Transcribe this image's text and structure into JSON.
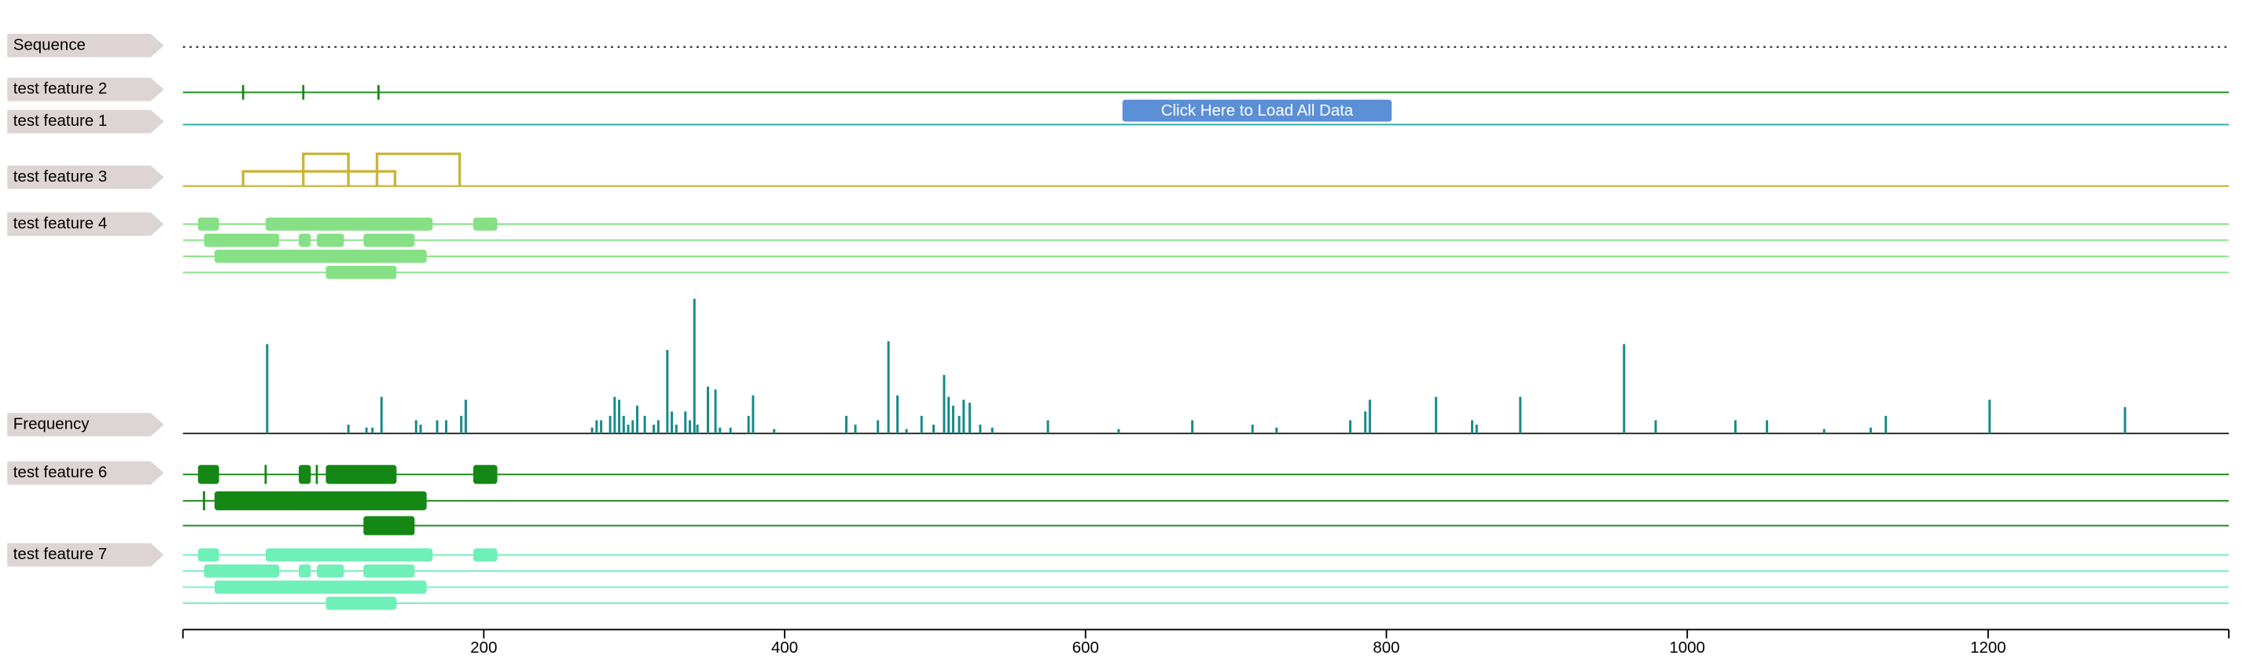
{
  "chart_data": {
    "type": "feature-viewer",
    "xlim": [
      0,
      1360
    ],
    "xticks": [
      200,
      400,
      600,
      800,
      1000,
      1200
    ],
    "button": {
      "label": "Click Here to Load All Data"
    },
    "tracks": [
      {
        "name": "Sequence",
        "kind": "sequence"
      },
      {
        "name": "test feature 2",
        "kind": "features",
        "color": "#168a16",
        "rows": [
          [
            40,
            80,
            130
          ]
        ]
      },
      {
        "name": "test feature 1",
        "kind": "features",
        "color": "#2aa6a6",
        "rows": [
          []
        ]
      },
      {
        "name": "test feature 3",
        "kind": "bridges",
        "color": "#c9b43a",
        "rows": [
          [
            [
              40,
              141
            ]
          ],
          [
            [
              80,
              110
            ],
            [
              129,
              184
            ]
          ]
        ]
      },
      {
        "name": "test feature 4",
        "kind": "features",
        "color": "#86e086",
        "rows": [
          [
            [
              10,
              24
            ],
            [
              55,
              166
            ],
            [
              193,
              209
            ]
          ],
          [
            [
              14,
              64
            ],
            [
              77,
              85
            ],
            [
              89,
              107
            ],
            [
              120,
              154
            ]
          ],
          [
            [
              21,
              162
            ]
          ],
          [
            [
              95,
              142
            ]
          ]
        ]
      },
      {
        "name": "Frequency",
        "kind": "frequency",
        "color": "#178a8a",
        "ylim": [
          0,
          100
        ],
        "x": [
          56,
          110,
          122,
          126,
          132,
          155,
          158,
          169,
          175,
          185,
          188,
          272,
          275,
          278,
          284,
          287,
          290,
          293,
          296,
          299,
          302,
          307,
          313,
          316,
          322,
          325,
          328,
          334,
          337,
          340,
          342,
          349,
          354,
          357,
          364,
          376,
          379,
          393,
          441,
          447,
          462,
          469,
          475,
          481,
          491,
          499,
          506,
          509,
          512,
          516,
          519,
          523,
          530,
          538,
          575,
          622,
          671,
          711,
          727,
          776,
          786,
          789,
          833,
          857,
          860,
          889,
          958,
          979,
          1032,
          1053,
          1091,
          1122,
          1132,
          1201,
          1291
        ],
        "values": [
          61,
          6,
          4,
          4,
          25,
          9,
          6,
          9,
          9,
          12,
          23,
          4,
          9,
          9,
          12,
          25,
          23,
          12,
          6,
          9,
          19,
          12,
          6,
          9,
          57,
          15,
          6,
          15,
          9,
          92,
          6,
          32,
          30,
          4,
          4,
          12,
          26,
          3,
          12,
          6,
          9,
          63,
          26,
          3,
          12,
          6,
          40,
          25,
          19,
          12,
          23,
          21,
          6,
          4,
          9,
          3,
          9,
          6,
          4,
          9,
          15,
          23,
          25,
          9,
          6,
          25,
          61,
          9,
          9,
          9,
          3,
          4,
          12,
          23,
          18
        ]
      },
      {
        "name": "test feature 6",
        "kind": "features",
        "color": "#148714",
        "rows": [
          [
            [
              10,
              24
            ],
            55,
            [
              77,
              85
            ],
            89,
            [
              95,
              142
            ],
            [
              193,
              209
            ]
          ],
          [
            14,
            [
              21,
              162
            ]
          ],
          [
            [
              120,
              154
            ]
          ]
        ]
      },
      {
        "name": "test feature 7",
        "kind": "features",
        "color": "#6ff0b8",
        "rows": [
          [
            [
              10,
              24
            ],
            [
              55,
              166
            ],
            [
              193,
              209
            ]
          ],
          [
            [
              14,
              64
            ],
            [
              77,
              85
            ],
            [
              89,
              107
            ],
            [
              120,
              154
            ]
          ],
          [
            [
              21,
              162
            ]
          ],
          [
            [
              95,
              142
            ]
          ]
        ]
      }
    ]
  }
}
